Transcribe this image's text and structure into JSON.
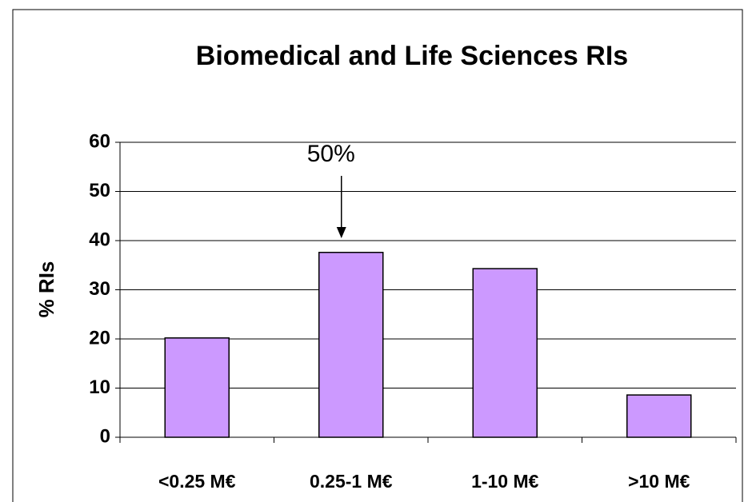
{
  "chart_data": {
    "type": "bar",
    "title": "Biomedical and Life Sciences RIs",
    "ylabel": "% RIs",
    "categories": [
      "<0.25 M€",
      "0.25-1 M€",
      "1-10 M€",
      ">10 M€"
    ],
    "values": [
      20.2,
      37.6,
      34.3,
      8.6
    ],
    "color": "#cc99ff",
    "ylim": [
      0,
      60
    ],
    "yticks": [
      0,
      10,
      20,
      30,
      40,
      50,
      60
    ],
    "grid": true,
    "annotation": "50%"
  }
}
